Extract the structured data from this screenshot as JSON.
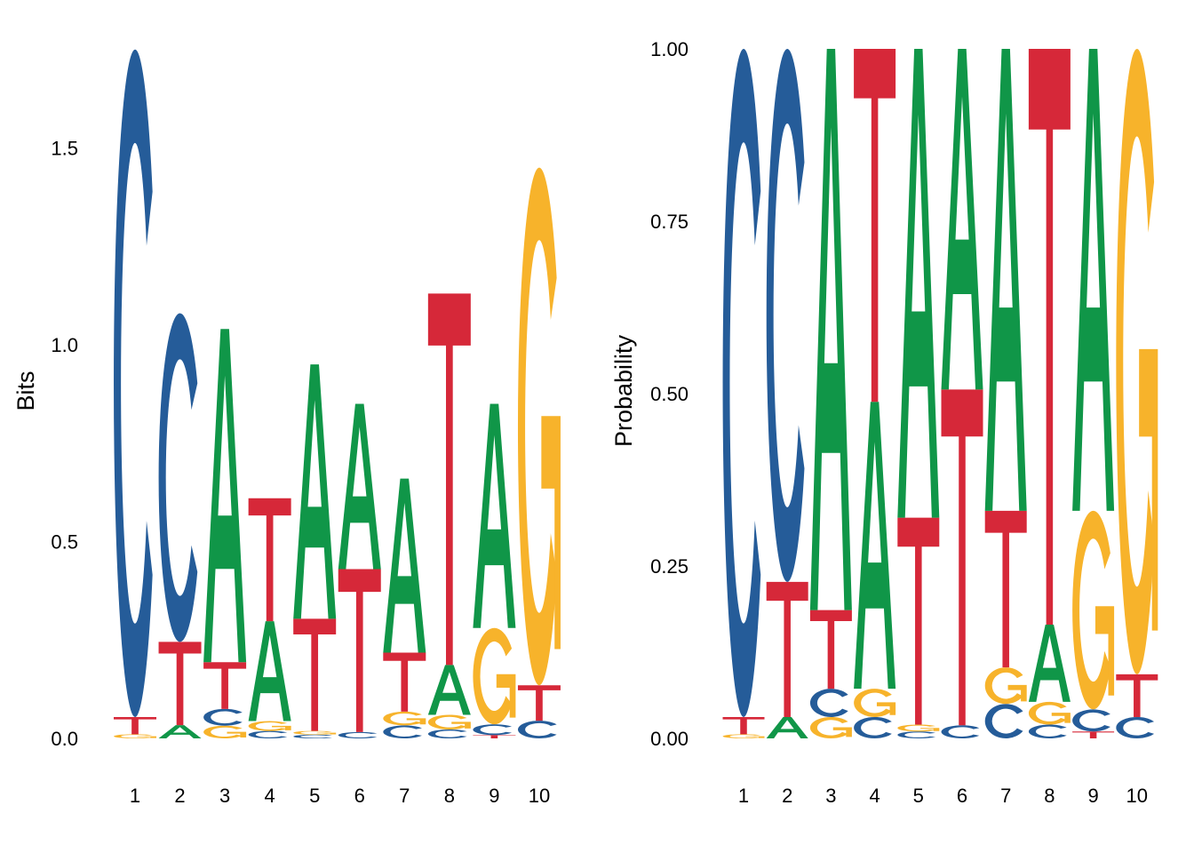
{
  "chart_data": [
    {
      "type": "sequence-logo",
      "method": "bits",
      "ylabel": "Bits",
      "ylim": [
        0,
        1.75
      ],
      "yticks": [
        "0.0",
        "0.5",
        "1.0",
        "1.5"
      ],
      "ytick_values": [
        0,
        0.5,
        1.0,
        1.5
      ],
      "xticks": [
        "1",
        "2",
        "3",
        "4",
        "5",
        "6",
        "7",
        "8",
        "9",
        "10"
      ],
      "grid": false,
      "bits_per_position": [
        1.75,
        1.08,
        1.04,
        0.61,
        0.95,
        0.85,
        0.66,
        1.13,
        0.85,
        1.45
      ]
    },
    {
      "type": "sequence-logo",
      "method": "probability",
      "ylabel": "Probability",
      "ylim": [
        0,
        1
      ],
      "yticks": [
        "0.00",
        "0.25",
        "0.50",
        "0.75",
        "1.00"
      ],
      "ytick_values": [
        0,
        0.25,
        0.5,
        0.75,
        1.0
      ],
      "xticks": [
        "1",
        "2",
        "3",
        "4",
        "5",
        "6",
        "7",
        "8",
        "9",
        "10"
      ],
      "grid": false
    }
  ],
  "probabilities": [
    {
      "A": 0.0,
      "C": 0.969,
      "G": 0.006,
      "T": 0.025
    },
    {
      "A": 0.031,
      "C": 0.773,
      "G": 0.0,
      "T": 0.196
    },
    {
      "A": 0.814,
      "C": 0.041,
      "G": 0.031,
      "T": 0.114
    },
    {
      "A": 0.416,
      "C": 0.031,
      "G": 0.041,
      "T": 0.512
    },
    {
      "A": 0.68,
      "C": 0.01,
      "G": 0.01,
      "T": 0.3
    },
    {
      "A": 0.494,
      "C": 0.019,
      "G": 0.0,
      "T": 0.487
    },
    {
      "A": 0.67,
      "C": 0.05,
      "G": 0.053,
      "T": 0.227
    },
    {
      "A": 0.112,
      "C": 0.02,
      "G": 0.033,
      "T": 0.835
    },
    {
      "A": 0.67,
      "C": 0.032,
      "G": 0.288,
      "T": 0.01
    },
    {
      "A": 0.0,
      "C": 0.031,
      "G": 0.907,
      "T": 0.062
    }
  ],
  "colors": {
    "A": "#109648",
    "C": "#255C99",
    "G": "#F7B32B",
    "T": "#D62839"
  }
}
